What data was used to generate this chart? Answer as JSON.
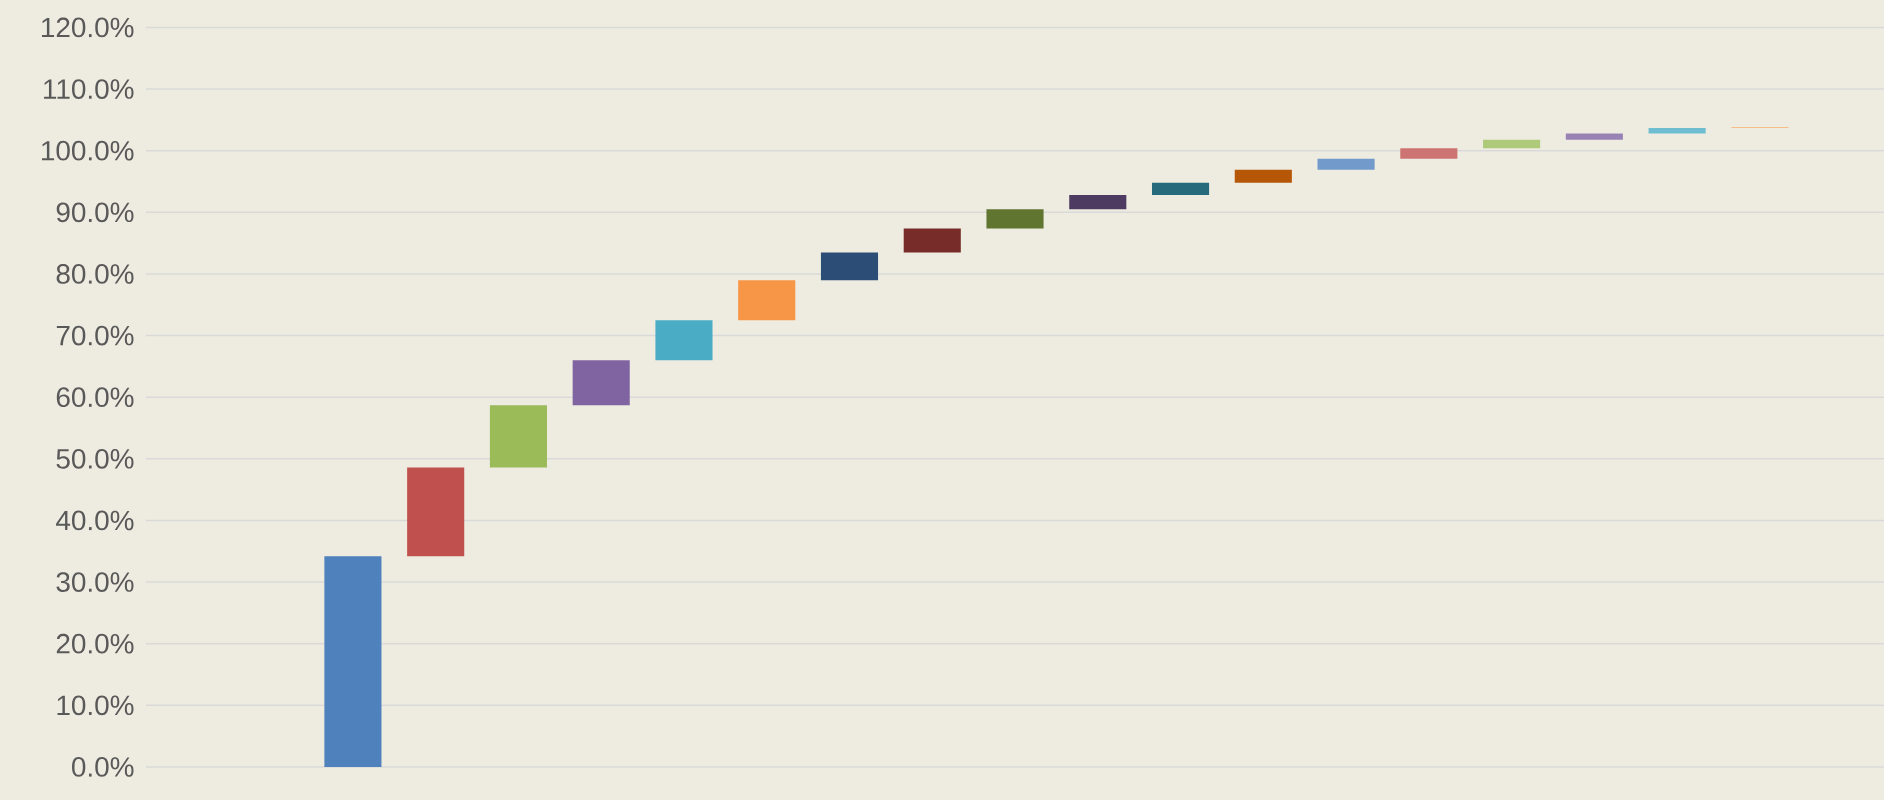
{
  "chart_data": {
    "type": "bar",
    "categories": [
      null,
      null,
      null,
      null,
      null,
      null,
      null,
      null,
      null,
      null,
      null,
      null,
      null,
      null,
      null,
      null,
      null,
      null,
      null,
      null,
      null
    ],
    "values": [
      null,
      null,
      34.2,
      14.4,
      10.1,
      7.3,
      6.5,
      6.5,
      4.5,
      3.9,
      3.1,
      2.3,
      2.0,
      2.1,
      1.8,
      1.7,
      1.4,
      1.0,
      0.9,
      0.1,
      null
    ],
    "base": [
      null,
      null,
      0,
      34.2,
      48.6,
      58.7,
      66.0,
      72.5,
      79.0,
      83.5,
      87.4,
      90.5,
      92.8,
      94.8,
      96.9,
      98.7,
      100.4,
      101.8,
      102.8,
      103.7,
      null
    ],
    "colors": [
      null,
      null,
      "#4f81bd",
      "#c0504d",
      "#9bbb59",
      "#8064a2",
      "#4bacc6",
      "#f79646",
      "#2c4d75",
      "#772c2a",
      "#5f7530",
      "#4d3b62",
      "#276a7c",
      "#b65708",
      "#729aca",
      "#cd7371",
      "#afc97a",
      "#9983b5",
      "#6fbdd1",
      "#f9ab6b",
      null
    ],
    "ylim": [
      0,
      120
    ],
    "yticks": [
      {
        "value": 0,
        "label": "0.0%"
      },
      {
        "value": 10,
        "label": "10.0%"
      },
      {
        "value": 20,
        "label": "20.0%"
      },
      {
        "value": 30,
        "label": "30.0%"
      },
      {
        "value": 40,
        "label": "40.0%"
      },
      {
        "value": 50,
        "label": "50.0%"
      },
      {
        "value": 60,
        "label": "60.0%"
      },
      {
        "value": 70,
        "label": "70.0%"
      },
      {
        "value": 80,
        "label": "80.0%"
      },
      {
        "value": 90,
        "label": "90.0%"
      },
      {
        "value": 100,
        "label": "100.0%"
      },
      {
        "value": 110,
        "label": "110.0%"
      },
      {
        "value": 120,
        "label": "120.0%"
      }
    ],
    "grid": "y",
    "tick_labels": "y"
  }
}
